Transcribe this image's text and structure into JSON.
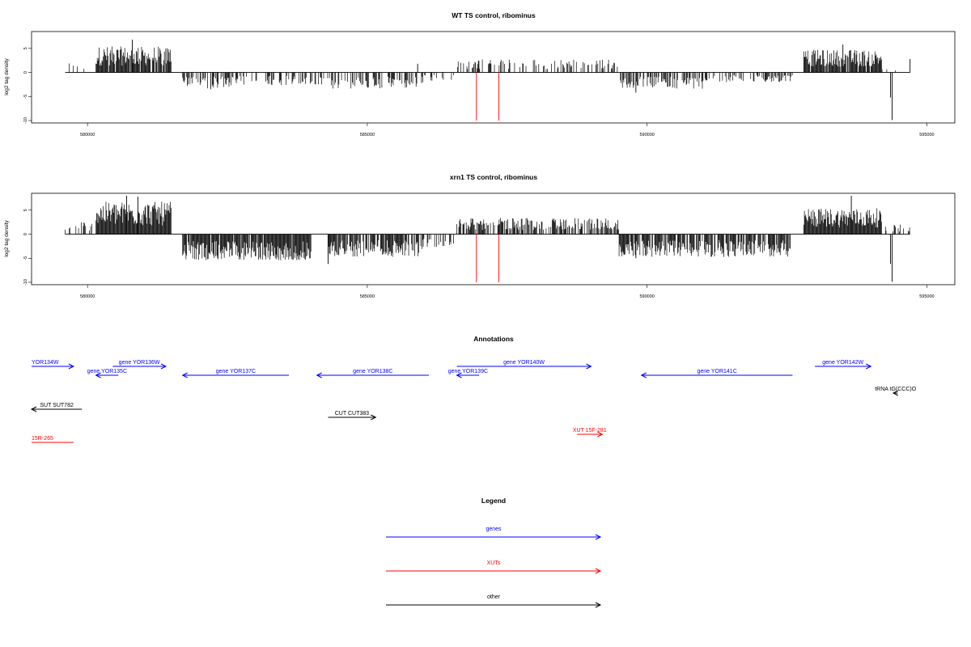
{
  "chart_data": [
    {
      "type": "bar",
      "title": "WT TS control, ribominus",
      "ylabel": "log2 tag density",
      "xlabel": "",
      "xlim": [
        579000,
        595500
      ],
      "ylim": [
        -10.5,
        8.5
      ],
      "xticks": [
        580000,
        585000,
        590000,
        595000
      ],
      "yticks": [
        -10,
        -5,
        0,
        5
      ],
      "xtick_labels": [
        "580000",
        "585000",
        "590000",
        "595000"
      ],
      "ytick_labels": [
        "-10",
        "-5",
        "0",
        "5"
      ],
      "grid": false,
      "signal_range": [
        579600,
        594700
      ],
      "blocks": [
        {
          "start": 579600,
          "end": 580100,
          "level": 1.5,
          "density": 0.2
        },
        {
          "start": 580150,
          "end": 581500,
          "level": 4,
          "density": 0.9
        },
        {
          "start": 581700,
          "end": 582600,
          "level": -2.5,
          "density": 0.6
        },
        {
          "start": 582600,
          "end": 584300,
          "level": -2,
          "density": 0.35
        },
        {
          "start": 584300,
          "end": 586000,
          "level": -2.5,
          "density": 0.5
        },
        {
          "start": 586000,
          "end": 586600,
          "level": -1.5,
          "density": 0.2
        },
        {
          "start": 586600,
          "end": 589500,
          "level": 2,
          "density": 0.35
        },
        {
          "start": 589500,
          "end": 591000,
          "level": -2.5,
          "density": 0.55
        },
        {
          "start": 591000,
          "end": 592600,
          "level": -1.5,
          "density": 0.4
        },
        {
          "start": 592800,
          "end": 594200,
          "level": 3.5,
          "density": 0.9
        },
        {
          "start": 594200,
          "end": 594700,
          "level": 1,
          "density": 0.2
        }
      ],
      "spikes": [
        {
          "x": 580800,
          "y": 6.8
        },
        {
          "x": 582200,
          "y": -3.5
        },
        {
          "x": 585900,
          "y": 1.8
        },
        {
          "x": 589800,
          "y": -4.2
        },
        {
          "x": 593500,
          "y": 5.8
        },
        {
          "x": 594350,
          "y": -5.2
        },
        {
          "x": 594380,
          "y": -9.9
        },
        {
          "x": 594700,
          "y": 2.8
        }
      ],
      "red_markers": [
        {
          "x": 586950,
          "y": -10
        },
        {
          "x": 587350,
          "y": -10
        }
      ]
    },
    {
      "type": "bar",
      "title": "xrn1 TS control, ribominus",
      "ylabel": "log2 tag density",
      "xlabel": "",
      "xlim": [
        579000,
        595500
      ],
      "ylim": [
        -10.5,
        8.5
      ],
      "xticks": [
        580000,
        585000,
        590000,
        595000
      ],
      "yticks": [
        -10,
        -5,
        0,
        5
      ],
      "xtick_labels": [
        "580000",
        "585000",
        "590000",
        "595000"
      ],
      "ytick_labels": [
        "-10",
        "-5",
        "0",
        "5"
      ],
      "grid": false,
      "signal_range": [
        579600,
        594700
      ],
      "blocks": [
        {
          "start": 579600,
          "end": 580100,
          "level": 2,
          "density": 0.35
        },
        {
          "start": 580150,
          "end": 581500,
          "level": 5,
          "density": 1.0
        },
        {
          "start": 581700,
          "end": 584000,
          "level": -4,
          "density": 0.95
        },
        {
          "start": 584300,
          "end": 586000,
          "level": -3.5,
          "density": 0.85
        },
        {
          "start": 586000,
          "end": 586600,
          "level": -2,
          "density": 0.5
        },
        {
          "start": 586600,
          "end": 589500,
          "level": 2.5,
          "density": 0.6
        },
        {
          "start": 589500,
          "end": 592600,
          "level": -3.5,
          "density": 0.8
        },
        {
          "start": 592800,
          "end": 594200,
          "level": 4,
          "density": 1.0
        },
        {
          "start": 594200,
          "end": 594700,
          "level": 1.5,
          "density": 0.3
        }
      ],
      "spikes": [
        {
          "x": 580700,
          "y": 8.0
        },
        {
          "x": 580900,
          "y": 7.8
        },
        {
          "x": 584300,
          "y": -6.2
        },
        {
          "x": 589800,
          "y": -5.0
        },
        {
          "x": 593650,
          "y": 8.0
        },
        {
          "x": 594350,
          "y": -6.2
        },
        {
          "x": 594380,
          "y": -9.9
        }
      ],
      "red_markers": [
        {
          "x": 586950,
          "y": -10
        },
        {
          "x": 587350,
          "y": -10
        }
      ]
    }
  ],
  "annotations": {
    "title": "Annotations",
    "items": [
      {
        "label": "YOR134W",
        "start": 579000,
        "end": 579750,
        "strand": "+",
        "row": 0,
        "color": "#0000ff",
        "label_at": "start"
      },
      {
        "label": "gene YOR135C",
        "start": 580150,
        "end": 580550,
        "strand": "-",
        "row": 1,
        "color": "#0000ff",
        "label_at": "center"
      },
      {
        "label": "gene YOR136W",
        "start": 580450,
        "end": 581400,
        "strand": "+",
        "row": 0,
        "color": "#0000ff",
        "label_at": "center"
      },
      {
        "label": "gene YOR137C",
        "start": 581700,
        "end": 583600,
        "strand": "-",
        "row": 1,
        "color": "#0000ff",
        "label_at": "center"
      },
      {
        "label": "gene YOR138C",
        "start": 584100,
        "end": 586100,
        "strand": "-",
        "row": 1,
        "color": "#0000ff",
        "label_at": "center"
      },
      {
        "label": "gene YOR139C",
        "start": 586600,
        "end": 587000,
        "strand": "-",
        "row": 1,
        "color": "#0000ff",
        "label_at": "center"
      },
      {
        "label": "gene YOR140W",
        "start": 586600,
        "end": 589000,
        "strand": "+",
        "row": 0,
        "color": "#0000ff",
        "label_at": "center"
      },
      {
        "label": "gene YOR141C",
        "start": 589900,
        "end": 592600,
        "strand": "-",
        "row": 1,
        "color": "#0000ff",
        "label_at": "center"
      },
      {
        "label": "gene YOR142W",
        "start": 593000,
        "end": 594000,
        "strand": "+",
        "row": 0,
        "color": "#0000ff",
        "label_at": "center"
      },
      {
        "label": "tRNA tG(CCC)O",
        "start": 594400,
        "end": 594480,
        "strand": "-",
        "row": 2,
        "color": "#000000",
        "label_at": "center"
      },
      {
        "label": "SUT SUT782",
        "start": 579000,
        "end": 579900,
        "strand": "-",
        "row": 3,
        "color": "#000000",
        "label_at": "center"
      },
      {
        "label": "CUT CUT383",
        "start": 584300,
        "end": 585150,
        "strand": "+",
        "row": 4,
        "color": "#000000",
        "label_at": "center"
      },
      {
        "label": "XUT 15F-281",
        "start": 588750,
        "end": 589200,
        "strand": "+",
        "row": 5,
        "color": "#ff0000",
        "label_at": "center"
      },
      {
        "label": "15R-265",
        "start": 579000,
        "end": 579750,
        "strand": "none",
        "row": 6,
        "color": "#ff0000",
        "label_at": "start"
      }
    ]
  },
  "legend": {
    "title": "Legend",
    "items": [
      {
        "label": "genes",
        "color": "#0000ff"
      },
      {
        "label": "XUTs",
        "color": "#ff0000"
      },
      {
        "label": "other",
        "color": "#000000"
      }
    ]
  }
}
